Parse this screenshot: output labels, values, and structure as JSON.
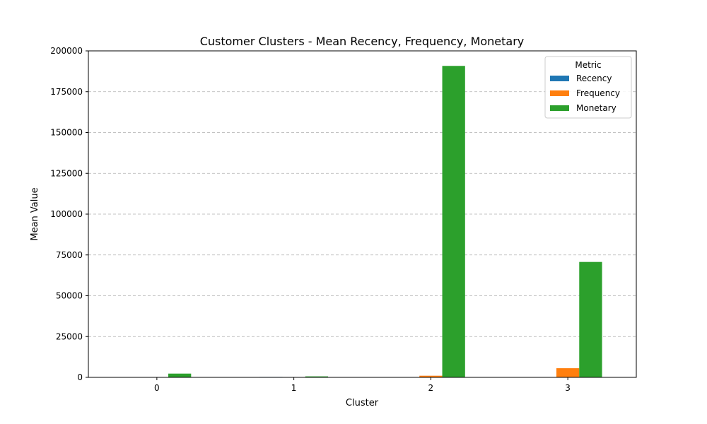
{
  "chart_data": {
    "type": "bar",
    "title": "Customer Clusters - Mean Recency, Frequency, Monetary",
    "xlabel": "Cluster",
    "ylabel": "Mean Value",
    "categories": [
      "0",
      "1",
      "2",
      "3"
    ],
    "ylim": [
      0,
      200000
    ],
    "yticks": [
      0,
      25000,
      50000,
      75000,
      100000,
      125000,
      150000,
      175000,
      200000
    ],
    "grid": "y-dashed",
    "legend": {
      "title": "Metric",
      "placement": "top-right"
    },
    "series": [
      {
        "name": "Recency",
        "color": "#1f77b4",
        "values": [
          40,
          250,
          10,
          8
        ]
      },
      {
        "name": "Frequency",
        "color": "#ff7f0e",
        "values": [
          80,
          30,
          1000,
          5600
        ]
      },
      {
        "name": "Monetary",
        "color": "#2ca02c",
        "values": [
          2300,
          600,
          190800,
          70700
        ]
      }
    ]
  }
}
